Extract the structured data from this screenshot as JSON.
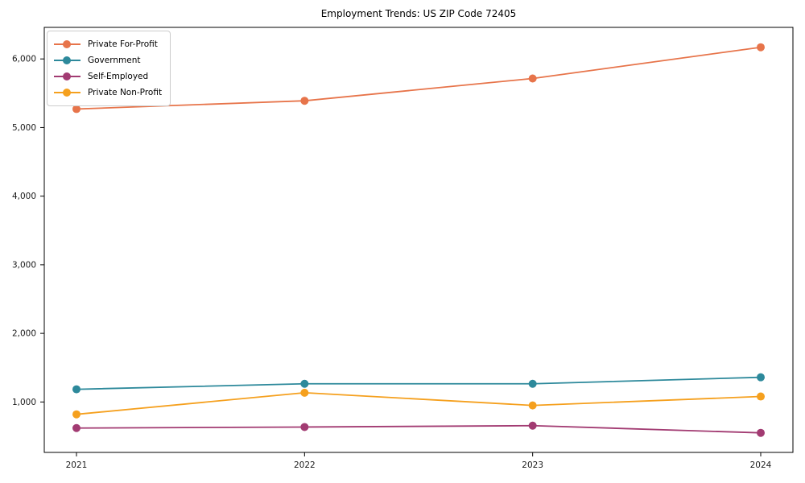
{
  "chart_data": {
    "type": "line",
    "title": "Employment Trends: US ZIP Code 72405",
    "xlabel": "",
    "ylabel": "",
    "categories": [
      "2021",
      "2022",
      "2023",
      "2024"
    ],
    "series": [
      {
        "name": "Private For-Profit",
        "color": "#E7744A",
        "values": [
          5270,
          5390,
          5715,
          6170
        ]
      },
      {
        "name": "Government",
        "color": "#2D899B",
        "values": [
          1185,
          1265,
          1265,
          1360
        ]
      },
      {
        "name": "Self-Employed",
        "color": "#A23B72",
        "values": [
          620,
          635,
          655,
          550
        ]
      },
      {
        "name": "Private Non-Profit",
        "color": "#F5A01E",
        "values": [
          820,
          1135,
          950,
          1080
        ]
      }
    ],
    "yticks": [
      1000,
      2000,
      3000,
      4000,
      5000,
      6000
    ],
    "ytick_labels": [
      "1,000",
      "2,000",
      "3,000",
      "4,000",
      "5,000",
      "6,000"
    ],
    "ylim": [
      265,
      6460
    ],
    "grid": false,
    "legend_position": "upper left",
    "marker": "circle",
    "spine_color": "#000000",
    "tick_label_color": "#1a1a1a"
  }
}
